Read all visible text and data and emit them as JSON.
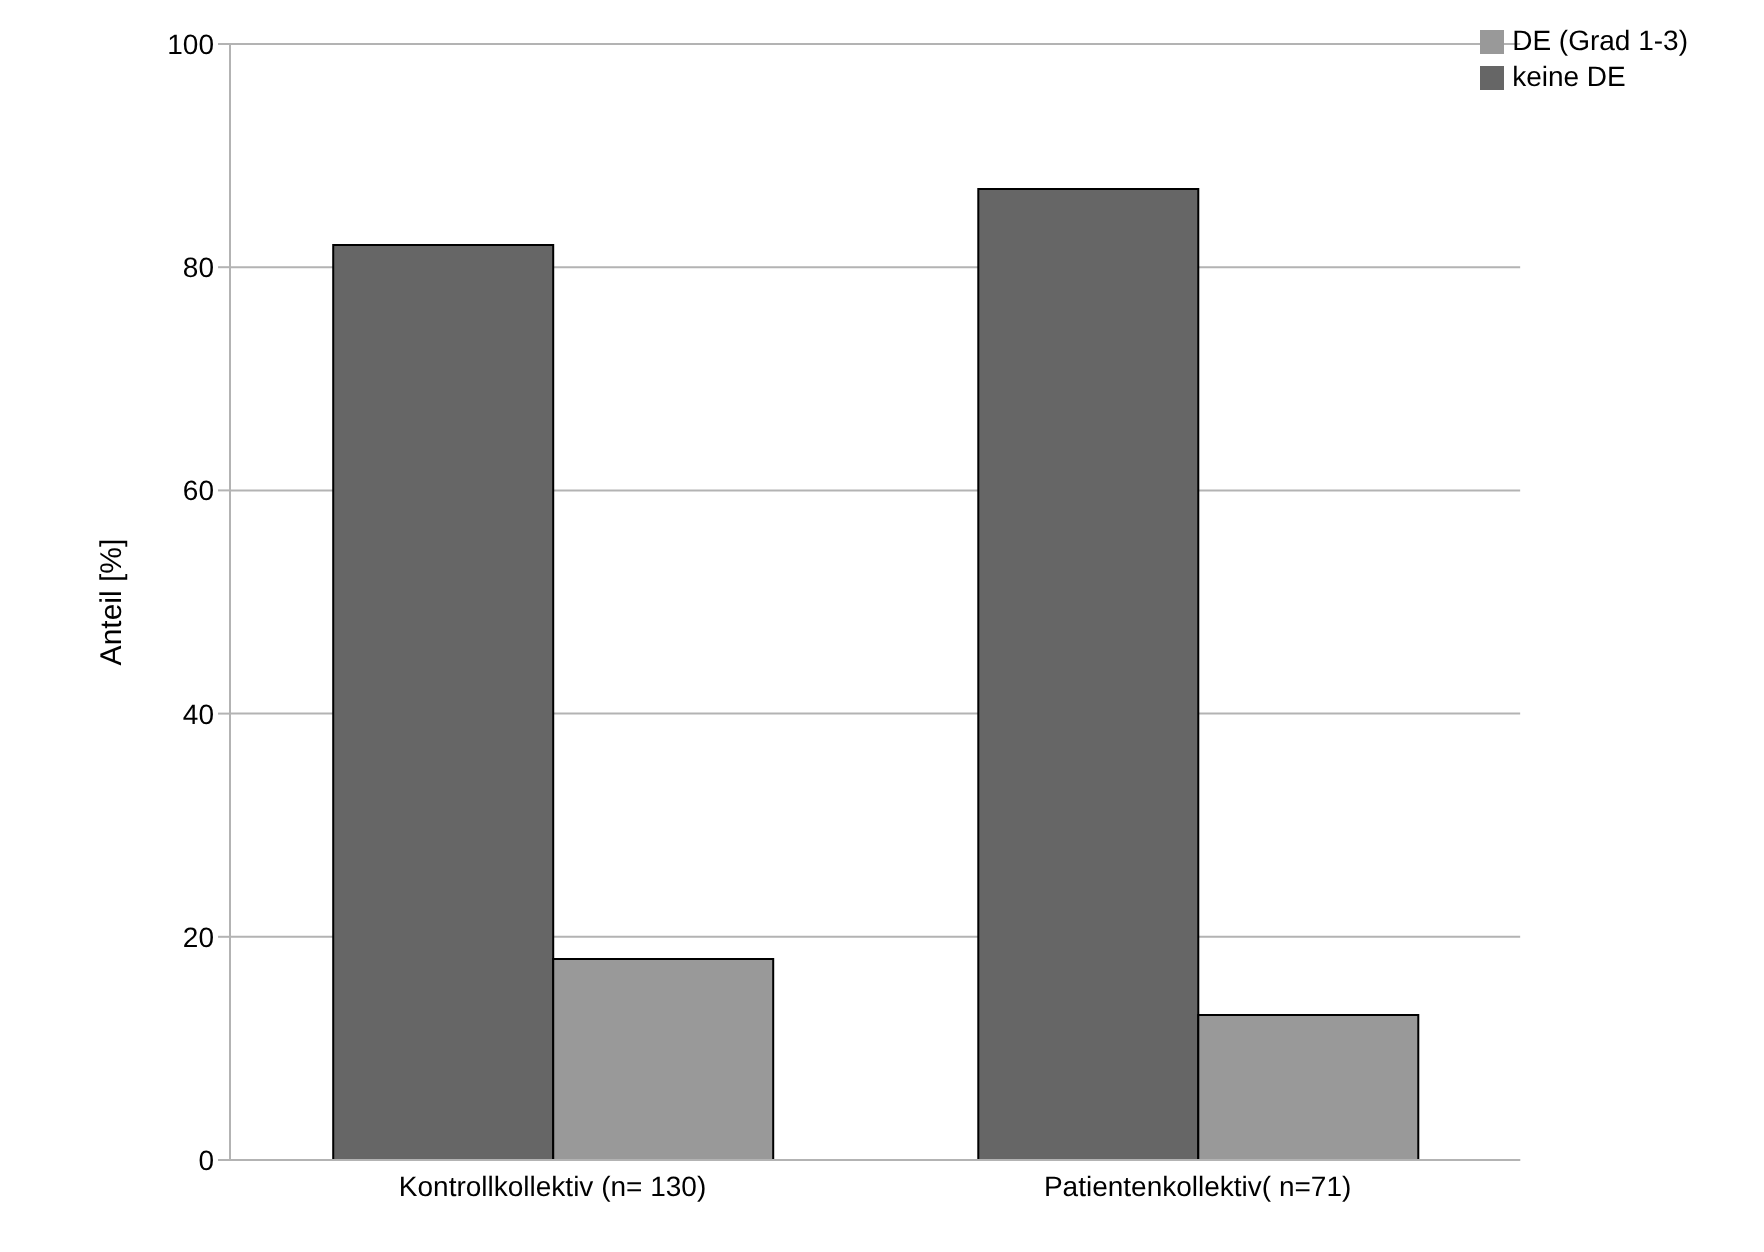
{
  "chart_data": {
    "type": "bar",
    "ylabel": "Anteil [%]",
    "categories": [
      "Kontrollkollektiv (n= 130)",
      "Patientenkollektiv( n=71)"
    ],
    "series": [
      {
        "name": "keine DE",
        "color": "#666666",
        "values": [
          82,
          87
        ]
      },
      {
        "name": "DE (Grad 1-3)",
        "color": "#999999",
        "values": [
          18,
          13
        ]
      }
    ],
    "ylim": [
      0,
      100
    ],
    "yticks": [
      0,
      20,
      40,
      60,
      80,
      100
    ],
    "grid": "y",
    "legend": "top right"
  }
}
